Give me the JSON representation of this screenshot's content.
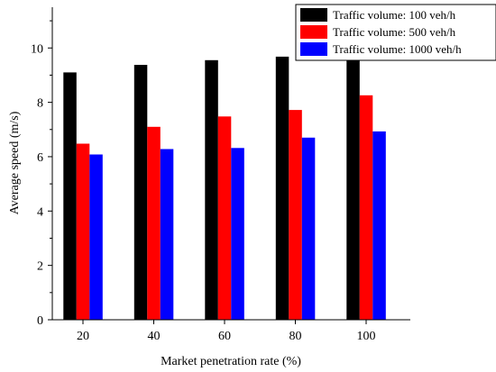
{
  "chart_data": {
    "type": "bar",
    "title": "",
    "xlabel": "Market penetration rate (%)",
    "ylabel": "Average speed (m/s)",
    "categories": [
      "20",
      "40",
      "60",
      "80",
      "100"
    ],
    "ylim": [
      0,
      11.5
    ],
    "yticks": [
      "0",
      "2",
      "4",
      "6",
      "8",
      "10"
    ],
    "grid": false,
    "legend_position": "top-right",
    "series": [
      {
        "name": "Traffic volume: 100 veh/h",
        "color": "#000000",
        "values": [
          9.1,
          9.38,
          9.55,
          9.68,
          10.42
        ]
      },
      {
        "name": "Traffic volume: 500 veh/h",
        "color": "#ff0000",
        "values": [
          6.48,
          7.1,
          7.48,
          7.72,
          8.26
        ]
      },
      {
        "name": "Traffic volume: 1000 veh/h",
        "color": "#0000ff",
        "values": [
          6.08,
          6.28,
          6.32,
          6.7,
          6.93
        ]
      }
    ]
  }
}
